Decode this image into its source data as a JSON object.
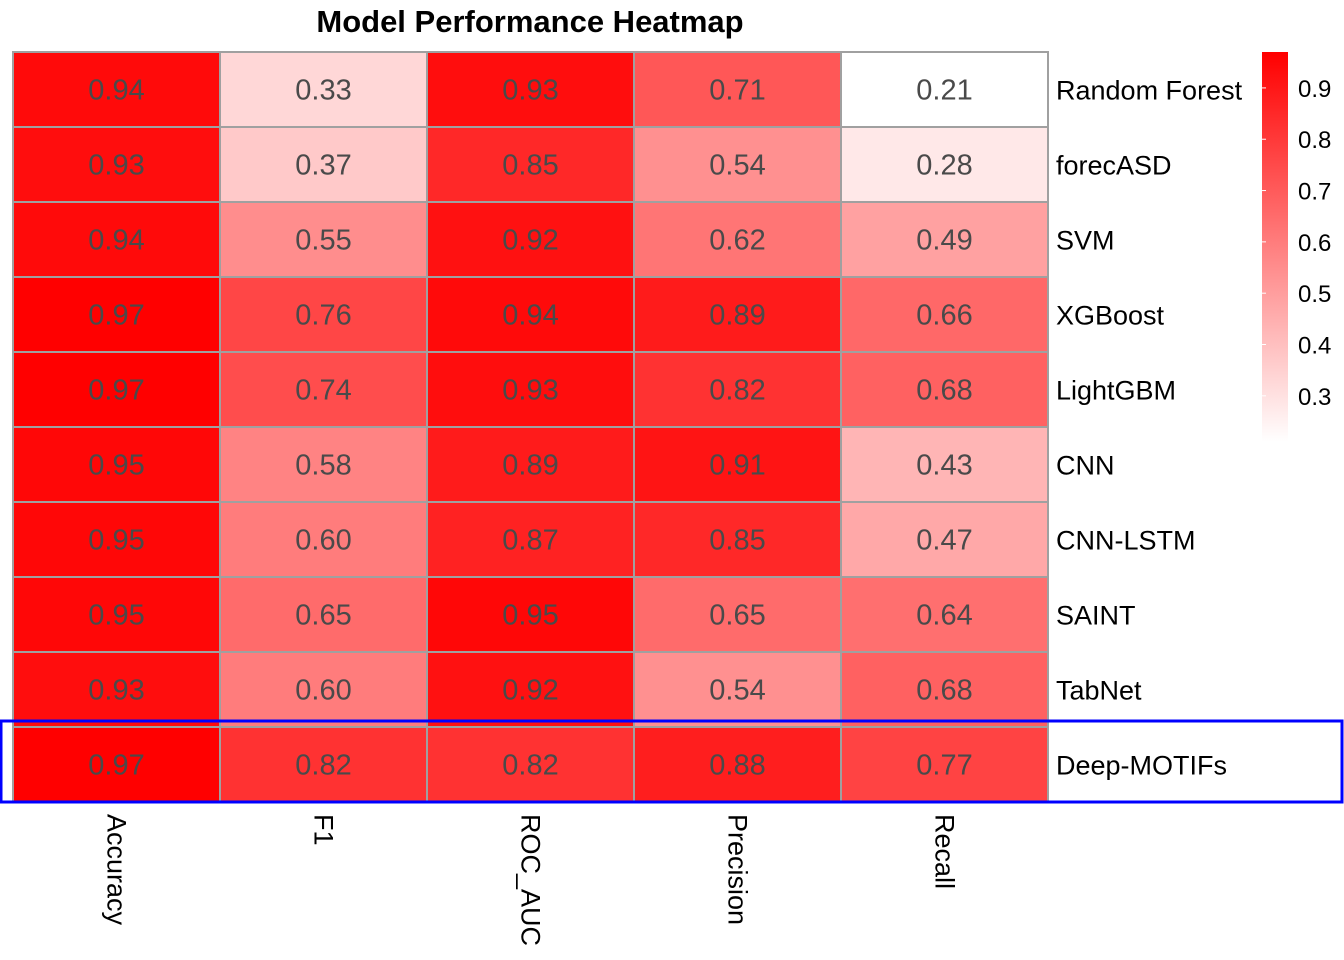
{
  "chart_data": {
    "type": "heatmap",
    "title": "Model Performance Heatmap",
    "rows": [
      "Random Forest",
      "forecASD",
      "SVM",
      "XGBoost",
      "LightGBM",
      "CNN",
      "CNN-LSTM",
      "SAINT",
      "TabNet",
      "Deep-MOTIFs"
    ],
    "columns": [
      "Accuracy",
      "F1",
      "ROC_AUC",
      "Precision",
      "Recall"
    ],
    "values": [
      [
        0.94,
        0.33,
        0.93,
        0.71,
        0.21
      ],
      [
        0.93,
        0.37,
        0.85,
        0.54,
        0.28
      ],
      [
        0.94,
        0.55,
        0.92,
        0.62,
        0.49
      ],
      [
        0.97,
        0.76,
        0.94,
        0.89,
        0.66
      ],
      [
        0.97,
        0.74,
        0.93,
        0.82,
        0.68
      ],
      [
        0.95,
        0.58,
        0.89,
        0.91,
        0.43
      ],
      [
        0.95,
        0.6,
        0.87,
        0.85,
        0.47
      ],
      [
        0.95,
        0.65,
        0.95,
        0.65,
        0.64
      ],
      [
        0.93,
        0.6,
        0.92,
        0.54,
        0.68
      ],
      [
        0.97,
        0.82,
        0.82,
        0.88,
        0.77
      ]
    ],
    "color_low": "#ffffff",
    "color_high": "#ff0000",
    "value_range": [
      0.21,
      0.97
    ],
    "legend": {
      "ticks": [
        0.9,
        0.8,
        0.7,
        0.6,
        0.5,
        0.4,
        0.3
      ],
      "position": "top-right"
    },
    "highlight": {
      "row": "Deep-MOTIFs",
      "color": "#0000ff"
    },
    "cell_border_color": "#a0a0a0",
    "text_color": "#4a4a4a"
  }
}
